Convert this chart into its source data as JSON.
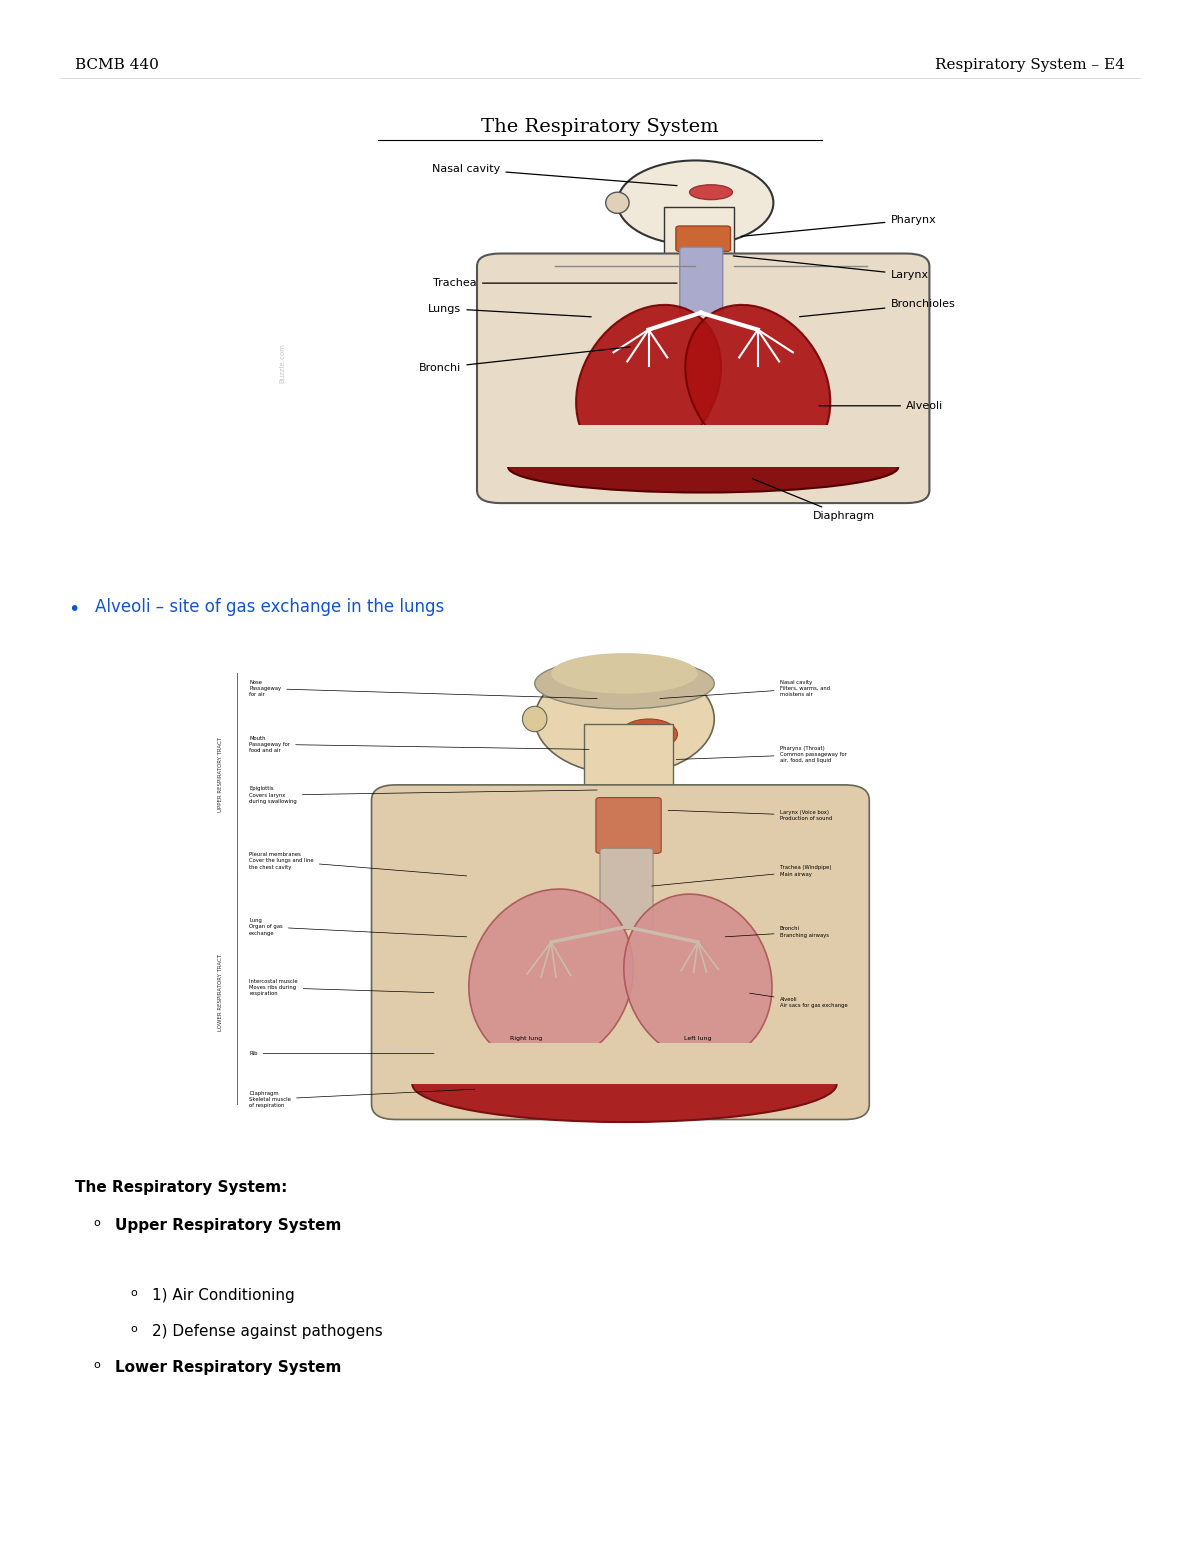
{
  "header_left": "BCMB 440",
  "header_right": "Respiratory System – E4",
  "page_title": "The Respiratory System",
  "bullet_text": "Alveoli – site of gas exchange in the lungs",
  "section_header": "The Respiratory System:",
  "sub_items": [
    {
      "level": 1,
      "text": "Upper Respiratory System"
    },
    {
      "level": 2,
      "text": "1) Air Conditioning"
    },
    {
      "level": 2,
      "text": "2) Defense against pathogens"
    },
    {
      "level": 1,
      "text": "Lower Respiratory System"
    }
  ],
  "bg_color": "#ffffff",
  "text_color": "#000000",
  "bullet_color": "#1155cc",
  "header_fontsize": 11,
  "title_fontsize": 14,
  "body_fontsize": 11,
  "bullet_fontsize": 12
}
